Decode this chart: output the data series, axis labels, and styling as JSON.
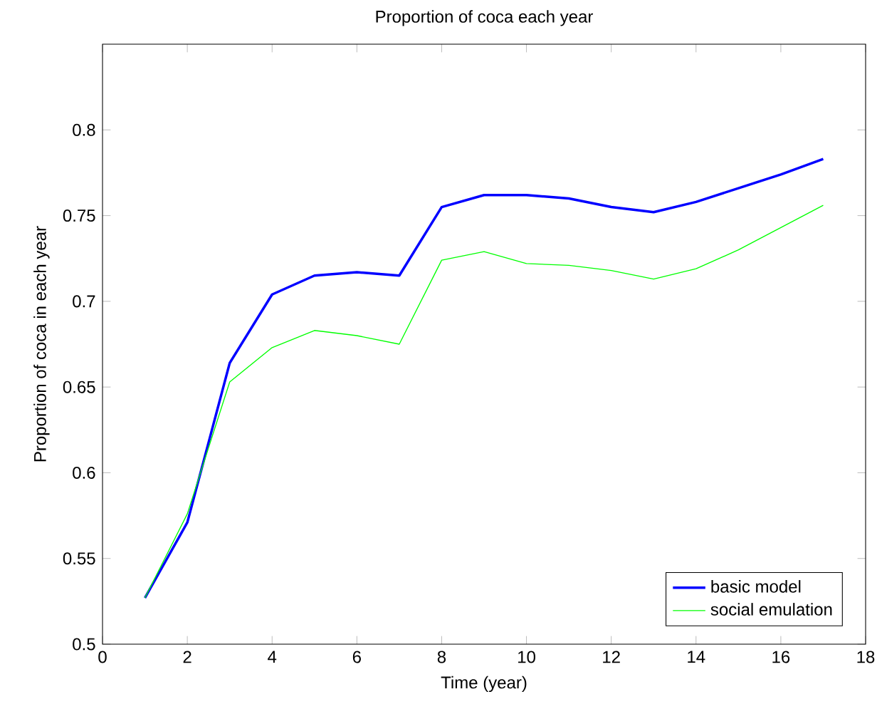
{
  "chart_data": {
    "type": "line",
    "title": "Proportion of coca each year",
    "xlabel": "Time (year)",
    "ylabel": "Proportion of coca in each year",
    "x": [
      1,
      2,
      3,
      4,
      5,
      6,
      7,
      8,
      9,
      10,
      11,
      12,
      13,
      14,
      15,
      16,
      17
    ],
    "series": [
      {
        "name": "basic model",
        "color": "#0000ff",
        "values": [
          0.527,
          0.571,
          0.664,
          0.704,
          0.715,
          0.717,
          0.715,
          0.755,
          0.762,
          0.762,
          0.76,
          0.755,
          0.752,
          0.758,
          0.766,
          0.774,
          0.783
        ]
      },
      {
        "name": "social emulation",
        "color": "#00ff00",
        "values": [
          0.527,
          0.576,
          0.653,
          0.673,
          0.683,
          0.68,
          0.675,
          0.724,
          0.729,
          0.722,
          0.721,
          0.718,
          0.713,
          0.719,
          0.73,
          0.743,
          0.756
        ]
      }
    ],
    "xlim": [
      0,
      18
    ],
    "xticks": [
      0,
      2,
      4,
      6,
      8,
      10,
      12,
      14,
      16,
      18
    ],
    "ylim": [
      0.5,
      0.85
    ],
    "yticks": [
      0.5,
      0.55,
      0.6,
      0.65,
      0.7,
      0.75,
      0.8
    ],
    "grid": false,
    "legend": "bottom right",
    "marker": "none",
    "line_style": "solid"
  }
}
